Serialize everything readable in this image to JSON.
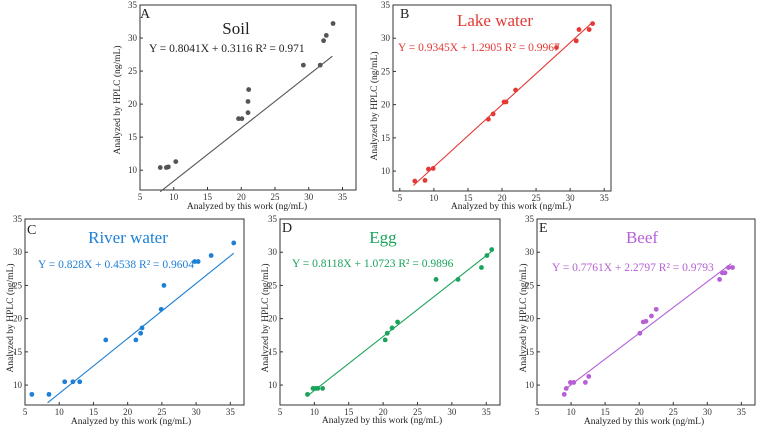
{
  "chart_data": [
    {
      "type": "scatter",
      "panel_letter": "A",
      "title": "Soil",
      "equation": "Y = 0.8041X + 0.3116 R² = 0.971",
      "xlabel": "Analyzed by this work (ng/mL)",
      "ylabel": "Analyzed by HPLC (ng/mL)",
      "xlim": [
        5,
        37
      ],
      "ylim": [
        7,
        35
      ],
      "xticks": [
        5,
        10,
        15,
        20,
        25,
        30,
        35
      ],
      "yticks": [
        10,
        15,
        20,
        25,
        30,
        35
      ],
      "color": "#555555",
      "fit": {
        "slope": 0.8041,
        "intercept": 0.3116,
        "x_range": [
          8,
          33.5
        ]
      },
      "points": [
        {
          "x": 8,
          "y": 10.4
        },
        {
          "x": 8.9,
          "y": 10.4
        },
        {
          "x": 9.2,
          "y": 10.5
        },
        {
          "x": 10.3,
          "y": 11.3
        },
        {
          "x": 19.6,
          "y": 17.8
        },
        {
          "x": 20.1,
          "y": 17.8
        },
        {
          "x": 21,
          "y": 18.7
        },
        {
          "x": 21,
          "y": 20.4
        },
        {
          "x": 21.1,
          "y": 22.2
        },
        {
          "x": 29.2,
          "y": 25.9
        },
        {
          "x": 31.7,
          "y": 25.9
        },
        {
          "x": 32.2,
          "y": 29.6
        },
        {
          "x": 32.6,
          "y": 30.4
        },
        {
          "x": 33.6,
          "y": 32.2
        }
      ]
    },
    {
      "type": "scatter",
      "panel_letter": "B",
      "title": "Lake water",
      "equation": "Y = 0.9345X + 1.2905 R² = 0.9967",
      "xlabel": "Analyzed by this work (ng/mL)",
      "ylabel": "Analyzed by HPLC (ng/mL)",
      "xlim": [
        4,
        36
      ],
      "ylim": [
        7,
        35
      ],
      "xticks": [
        5,
        10,
        15,
        20,
        25,
        30,
        35
      ],
      "yticks": [
        10,
        15,
        20,
        25,
        30,
        35
      ],
      "color": "#e53935",
      "fit": {
        "slope": 0.9345,
        "intercept": 1.2905,
        "x_range": [
          7,
          33.3
        ]
      },
      "points": [
        {
          "x": 7.2,
          "y": 8.5
        },
        {
          "x": 8.7,
          "y": 8.6
        },
        {
          "x": 9.2,
          "y": 10.3
        },
        {
          "x": 9.9,
          "y": 10.4
        },
        {
          "x": 18,
          "y": 17.8
        },
        {
          "x": 18.7,
          "y": 18.6
        },
        {
          "x": 20.3,
          "y": 20.4
        },
        {
          "x": 20.6,
          "y": 20.4
        },
        {
          "x": 22,
          "y": 22.2
        },
        {
          "x": 28,
          "y": 28.6
        },
        {
          "x": 30.9,
          "y": 29.6
        },
        {
          "x": 31.3,
          "y": 31.3
        },
        {
          "x": 32.8,
          "y": 31.3
        },
        {
          "x": 33.3,
          "y": 32.2
        }
      ]
    },
    {
      "type": "scatter",
      "panel_letter": "C",
      "title": "River water",
      "equation": "Y = 0.828X + 0.4538 R² = 0.9604",
      "xlabel": "Analyzed by this work (ng/mL)",
      "ylabel": "Analyzed by HPLC (ng/mL)",
      "xlim": [
        5,
        37
      ],
      "ylim": [
        7,
        35
      ],
      "xticks": [
        5,
        10,
        15,
        20,
        25,
        30,
        35
      ],
      "yticks": [
        10,
        15,
        20,
        25,
        30,
        35
      ],
      "color": "#1e7fd6",
      "fit": {
        "slope": 0.828,
        "intercept": 0.4538,
        "x_range": [
          8.3,
          35.5
        ]
      },
      "points": [
        {
          "x": 6,
          "y": 8.6
        },
        {
          "x": 8.5,
          "y": 8.6
        },
        {
          "x": 10.8,
          "y": 10.5
        },
        {
          "x": 12,
          "y": 10.5
        },
        {
          "x": 13,
          "y": 10.5
        },
        {
          "x": 16.8,
          "y": 16.8
        },
        {
          "x": 21.2,
          "y": 16.8
        },
        {
          "x": 21.9,
          "y": 17.8
        },
        {
          "x": 22.1,
          "y": 18.6
        },
        {
          "x": 24.9,
          "y": 21.4
        },
        {
          "x": 25.3,
          "y": 25
        },
        {
          "x": 29.8,
          "y": 28.6
        },
        {
          "x": 30.3,
          "y": 28.6
        },
        {
          "x": 32.2,
          "y": 29.5
        },
        {
          "x": 35.5,
          "y": 31.4
        }
      ]
    },
    {
      "type": "scatter",
      "panel_letter": "D",
      "title": "Egg",
      "equation": "Y = 0.8118X + 1.0723 R² = 0.9896",
      "xlabel": "Analyzed by this work (ng/mL)",
      "ylabel": "Analyzed by HPLC (ng/mL)",
      "xlim": [
        5,
        37
      ],
      "ylim": [
        7,
        35
      ],
      "xticks": [
        5,
        10,
        15,
        20,
        25,
        30,
        35
      ],
      "yticks": [
        10,
        15,
        20,
        25,
        30,
        35
      ],
      "color": "#1aa35a",
      "fit": {
        "slope": 0.8118,
        "intercept": 1.0723,
        "x_range": [
          9,
          35.8
        ]
      },
      "points": [
        {
          "x": 9,
          "y": 8.6
        },
        {
          "x": 9.8,
          "y": 9.5
        },
        {
          "x": 10.2,
          "y": 9.5
        },
        {
          "x": 10.5,
          "y": 9.5
        },
        {
          "x": 11.2,
          "y": 9.5
        },
        {
          "x": 20.3,
          "y": 16.8
        },
        {
          "x": 20.6,
          "y": 17.8
        },
        {
          "x": 21.3,
          "y": 18.6
        },
        {
          "x": 22.1,
          "y": 19.5
        },
        {
          "x": 27.7,
          "y": 25.9
        },
        {
          "x": 30.9,
          "y": 25.9
        },
        {
          "x": 34.3,
          "y": 27.7
        },
        {
          "x": 35.1,
          "y": 29.5
        },
        {
          "x": 35.8,
          "y": 30.4
        }
      ]
    },
    {
      "type": "scatter",
      "panel_letter": "E",
      "title": "Beef",
      "equation": "Y = 0.7761X + 2.2797 R² = 0.9793",
      "xlabel": "Analyzed by this work (ng/mL)",
      "ylabel": "Analyzed by HPLC (ng/mL)",
      "xlim": [
        5,
        37
      ],
      "ylim": [
        7,
        35
      ],
      "xticks": [
        5,
        10,
        15,
        20,
        25,
        30,
        35
      ],
      "yticks": [
        10,
        15,
        20,
        25,
        30,
        35
      ],
      "color": "#b65fd6",
      "fit": {
        "slope": 0.7761,
        "intercept": 2.2797,
        "x_range": [
          9,
          33.5
        ]
      },
      "points": [
        {
          "x": 9,
          "y": 8.6
        },
        {
          "x": 9.3,
          "y": 9.5
        },
        {
          "x": 9.9,
          "y": 10.4
        },
        {
          "x": 10.4,
          "y": 10.4
        },
        {
          "x": 12.1,
          "y": 10.4
        },
        {
          "x": 12.6,
          "y": 11.3
        },
        {
          "x": 20.1,
          "y": 17.8
        },
        {
          "x": 20.6,
          "y": 19.5
        },
        {
          "x": 21,
          "y": 19.6
        },
        {
          "x": 21.8,
          "y": 20.4
        },
        {
          "x": 22.5,
          "y": 21.4
        },
        {
          "x": 31.8,
          "y": 25.9
        },
        {
          "x": 32.2,
          "y": 26.9
        },
        {
          "x": 32.6,
          "y": 26.9
        },
        {
          "x": 33.1,
          "y": 27.7
        },
        {
          "x": 33.7,
          "y": 27.7
        }
      ]
    }
  ]
}
